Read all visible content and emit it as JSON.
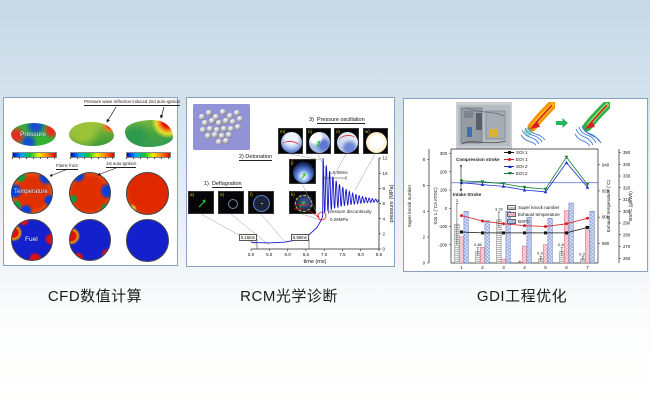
{
  "slide": {
    "captions": [
      "CFD数值计算",
      "RCM光学诊断",
      "GDI工程优化"
    ]
  },
  "cfd": {
    "annotation_top": "Pressure wave reflection induced 2nd auto-ignition",
    "flame_front": "Flame front",
    "first_autoignition": "1st auto-ignition",
    "labels": {
      "pressure": "Pressure",
      "temperature": "Temperature",
      "fuel": "Fuel"
    }
  },
  "rcm": {
    "stage1": "1)",
    "stage1_title": "Deflagration",
    "stage2": "2) Detonation",
    "stage3": "3)",
    "stage3_title": "Pressure oscillation",
    "frames": {
      "a": "a)",
      "e": "e)",
      "f": "f)",
      "j": "j)",
      "k": "k)",
      "m": "m)",
      "n": "n)",
      "o": "o)",
      "w": "w)"
    },
    "ann": {
      "dt": "t=0.09ms",
      "disc": "pressure discontinuity",
      "disc_value": "0.26MPa",
      "wave_line1": "Pressure",
      "wave_line2": "wave",
      "t_defl": "5.16ms",
      "t_deto": "6.59ms"
    }
  },
  "gdi": {
    "ann": {
      "compression": "Compression stroke",
      "intake": "Intake Stroke"
    }
  },
  "chart_data": [
    {
      "id": "rcm-pressure-trace",
      "type": "line",
      "title": "",
      "xlabel": "time (ms)",
      "ylabel": "pressure (MPa)",
      "xlim": [
        5.0,
        8.5
      ],
      "ylim": [
        0,
        12
      ],
      "xticks": [
        "5.0",
        "5.5",
        "6.0",
        "6.5",
        "7.0",
        "7.5",
        "8.0",
        "8.5"
      ],
      "yticks": [
        0,
        2,
        4,
        6,
        8,
        10,
        12
      ],
      "series_color": "#1616c8",
      "base_points": [
        [
          5.0,
          0.9
        ],
        [
          5.16,
          0.85
        ],
        [
          5.5,
          0.8
        ],
        [
          5.9,
          0.9
        ],
        [
          6.2,
          1.15
        ],
        [
          6.59,
          1.9
        ],
        [
          6.8,
          2.8
        ],
        [
          6.93,
          3.9
        ],
        [
          6.96,
          4.3
        ]
      ],
      "oscillation": {
        "t0": 6.97,
        "t1": 8.5,
        "base_start": 8.3,
        "base_end": 6.3,
        "base_decay": 0.45,
        "amp_start": 3.7,
        "amp_decay": 0.5,
        "period_ms": 0.09
      },
      "events": {
        "deflagration_ms": 5.16,
        "detonation_ms": 6.59,
        "discontinuity_mpa": 0.26
      }
    },
    {
      "id": "gdi-optimization",
      "type": "combo",
      "categories": [
        "1",
        "2",
        "3",
        "4",
        "5",
        "6",
        "7"
      ],
      "bar_series": [
        {
          "name": "Super knock number",
          "axis": "knock",
          "values": [
            3,
            0.88,
            3.33,
            0.05,
            0.33,
            0.88,
            0.33
          ],
          "labels": [
            "3",
            "0.88",
            "3.33",
            "",
            "0.33",
            "0.88",
            "0.33"
          ],
          "err": [
            1.6,
            0.3,
            0.6,
            0.1,
            0.2,
            0.3,
            0.15
          ],
          "style": "knock"
        },
        {
          "name": "Exhaust temperature",
          "axis": "temp",
          "values": [
            885,
            877,
            868,
            878,
            879,
            905,
            893
          ],
          "style": "temp"
        },
        {
          "name": "BSFC",
          "axis": "bsfc",
          "values": [
            300,
            292,
            300,
            295,
            294,
            307,
            300
          ],
          "style": "bsfc"
        }
      ],
      "line_series": [
        {
          "name": "SOI 1",
          "axis": "soi",
          "color": "#141414",
          "marker": "square",
          "values": [
            -130,
            -135,
            -135,
            -135,
            -135,
            -135,
            -105
          ]
        },
        {
          "name": "EOI 1",
          "axis": "soi",
          "color": "#d42020",
          "marker": "circle",
          "values": [
            -40,
            -70,
            -85,
            -95,
            -100,
            -85,
            -55
          ]
        },
        {
          "name": "SOI 2",
          "axis": "soi",
          "color": "#2030d0",
          "marker": "triangle",
          "values": [
            140,
            130,
            120,
            100,
            90,
            250,
            115
          ]
        },
        {
          "name": "EOI 2",
          "axis": "soi",
          "color": "#108030",
          "marker": "tridown",
          "values": [
            150,
            145,
            135,
            115,
            105,
            280,
            130
          ]
        }
      ],
      "reference_line": {
        "axis": "soi",
        "value": 140,
        "color": "#5566cc"
      },
      "axes": {
        "knock": {
          "label": "Super knock number",
          "range": [
            0,
            8.8
          ],
          "ticks": [
            0,
            2,
            4,
            6,
            8
          ]
        },
        "soi": {
          "label": "SOI 1 (°CA ATDC)",
          "range": [
            -300,
            325
          ],
          "ticks": [
            -200,
            -100,
            0,
            100,
            200,
            300
          ]
        },
        "temp": {
          "label": "Exhaust temperature (°C)",
          "range": [
            865,
            952
          ],
          "ticks": [
            880,
            900,
            920,
            940
          ]
        },
        "bsfc": {
          "label": "BSFC (g/kWh)",
          "range": [
            256,
            353
          ],
          "ticks": [
            260,
            270,
            280,
            290,
            300,
            310,
            320,
            330,
            340,
            350
          ]
        }
      }
    }
  ]
}
